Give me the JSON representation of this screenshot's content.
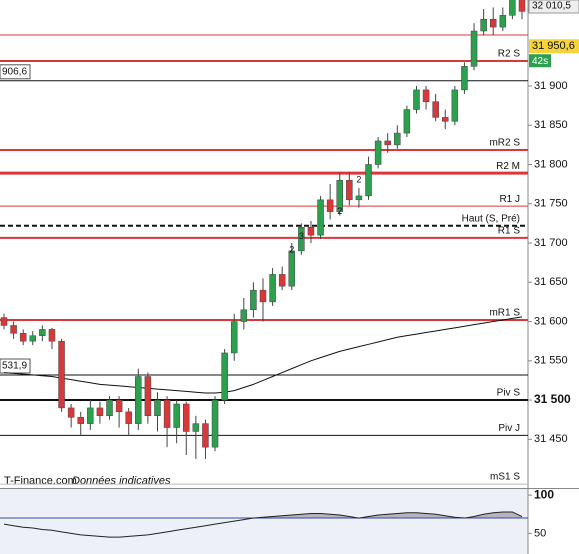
{
  "chart_data": {
    "type": "candlestick",
    "ylim": [
      31388,
      32009.5
    ],
    "yticks": [
      {
        "value": 31900,
        "label": "31 900"
      },
      {
        "value": 31850,
        "label": "31 850"
      },
      {
        "value": 31800,
        "label": "31 800"
      },
      {
        "value": 31750,
        "label": "31 750"
      },
      {
        "value": 31700,
        "label": "31 700"
      },
      {
        "value": 31650,
        "label": "31 650"
      },
      {
        "value": 31600,
        "label": "31 600"
      },
      {
        "value": 31550,
        "label": "31 550"
      },
      {
        "value": 31500,
        "label": "31 500"
      },
      {
        "value": 31450,
        "label": "31 450"
      }
    ],
    "up_color": "#2e9e4f",
    "down_color": "#d9383a",
    "open": [
      31605,
      31595,
      31585,
      31575,
      31582,
      31590,
      31575,
      31490,
      31478,
      31470,
      31490,
      31480,
      31500,
      31485,
      31470,
      31530,
      31480,
      31500,
      31465,
      31495,
      31460,
      31470,
      31440,
      31500,
      31560,
      31600,
      31615,
      31640,
      31625,
      31660,
      31645,
      31690,
      31720,
      31710,
      31755,
      31740,
      31780,
      31755,
      31760,
      31800,
      31830,
      31825,
      31840,
      31870,
      31895,
      31880,
      31860,
      31855,
      31895,
      31925,
      31970,
      31985,
      31975,
      31990,
      32010
    ],
    "high": [
      31610,
      31600,
      31590,
      31588,
      31595,
      31592,
      31578,
      31495,
      31485,
      31500,
      31498,
      31505,
      31505,
      31490,
      31540,
      31535,
      31510,
      31505,
      31500,
      31498,
      31480,
      31475,
      31505,
      31565,
      31610,
      31630,
      31650,
      31655,
      31668,
      31670,
      31700,
      31725,
      31728,
      31760,
      31775,
      31790,
      31790,
      31770,
      31810,
      31835,
      31840,
      31850,
      31875,
      31900,
      31900,
      31890,
      31870,
      31900,
      31930,
      31980,
      31998,
      32000,
      32000,
      32012,
      32012
    ],
    "low": [
      31590,
      31578,
      31570,
      31570,
      31575,
      31565,
      31485,
      31465,
      31455,
      31462,
      31470,
      31475,
      31465,
      31455,
      31462,
      31470,
      31460,
      31440,
      31445,
      31430,
      31425,
      31425,
      31435,
      31495,
      31550,
      31590,
      31605,
      31600,
      31620,
      31640,
      31640,
      31685,
      31700,
      31705,
      31730,
      31735,
      31748,
      31745,
      31755,
      31795,
      31815,
      31820,
      31835,
      31865,
      31870,
      31855,
      31845,
      31850,
      31890,
      31920,
      31965,
      31965,
      31970,
      31985,
      31985
    ],
    "close": [
      31595,
      31585,
      31575,
      31582,
      31590,
      31575,
      31490,
      31478,
      31470,
      31490,
      31480,
      31500,
      31485,
      31470,
      31530,
      31480,
      31500,
      31465,
      31495,
      31460,
      31470,
      31440,
      31500,
      31560,
      31600,
      31615,
      31640,
      31625,
      31660,
      31645,
      31690,
      31720,
      31710,
      31755,
      31740,
      31780,
      31755,
      31760,
      31800,
      31830,
      31825,
      31840,
      31870,
      31895,
      31880,
      31860,
      31855,
      31895,
      31925,
      31970,
      31985,
      31975,
      31990,
      32010,
      31995
    ],
    "moving_average": {
      "color": "#111111",
      "values": [
        31535,
        31534,
        31533,
        31532,
        31531,
        31530,
        31528,
        31526,
        31524,
        31522,
        31520,
        31519,
        31518,
        31517,
        31516,
        31515,
        31514,
        31513,
        31512,
        31511,
        31510,
        31509,
        31509,
        31510,
        31512,
        31516,
        31520,
        31525,
        31530,
        31535,
        31540,
        31545,
        31550,
        31554,
        31558,
        31562,
        31565,
        31568,
        31571,
        31574,
        31577,
        31580,
        31582,
        31584,
        31586,
        31588,
        31590,
        31592,
        31594,
        31596,
        31598,
        31600,
        31602,
        31604,
        31606
      ]
    },
    "levels": [
      {
        "value": 31965,
        "color": "#d9383a",
        "width": 1
      },
      {
        "value": 31931.8,
        "label": "R2 S",
        "color": "#d9383a",
        "width": 2
      },
      {
        "value": 31906.6,
        "side_label": "906,6",
        "color": "#111111",
        "width": 1
      },
      {
        "value": 31818.5,
        "label": "mR2 S",
        "color": "#d9383a",
        "width": 2
      },
      {
        "value": 31789,
        "label": "R2 M",
        "color": "#d9383a",
        "width": 3
      },
      {
        "value": 31747,
        "label": "R1 J",
        "color": "#d9383a",
        "width": 1
      },
      {
        "value": 31722,
        "label": "Haut (S, Pré)",
        "color": "#111111",
        "width": 2,
        "dashed": true
      },
      {
        "value": 31706.5,
        "label": "R1 S",
        "color": "#d9383a",
        "width": 2
      },
      {
        "value": 31602,
        "label": "mR1 S",
        "color": "#d9383a",
        "width": 2
      },
      {
        "value": 31531.9,
        "side_label": "531,9",
        "color": "#111111",
        "width": 1
      },
      {
        "value": 31500,
        "label": "Piv S",
        "color": "#111111",
        "width": 2
      },
      {
        "value": 31455,
        "label": "Piv J",
        "color": "#111111",
        "width": 1
      },
      {
        "value": 31393,
        "label": "mS1 S",
        "color": "#bbbbbb",
        "width": 1
      }
    ],
    "annotations": [
      {
        "text": "2",
        "candle": 30,
        "price": 31691
      },
      {
        "text": "3",
        "candle": 31,
        "price": 31708
      },
      {
        "text": "2",
        "candle": 35,
        "price": 31740
      },
      {
        "text": "2",
        "candle": 37,
        "price": 31780
      }
    ],
    "top_price": "32 010,5",
    "last_price": {
      "value": 31950.6,
      "label": "31 950,6"
    },
    "timer": "42s",
    "watermark": "T-Finance.com",
    "watermark_note": "Données indicatives",
    "oscillator": {
      "type": "line",
      "color": "#222222",
      "fill": "#b9b3bf",
      "ylim": [
        23,
        108
      ],
      "yticks": [
        100,
        50
      ],
      "reference": 70,
      "values": [
        62,
        60,
        58,
        57,
        55,
        54,
        52,
        50,
        48,
        47,
        46,
        45,
        45,
        46,
        47,
        48,
        50,
        52,
        54,
        56,
        58,
        60,
        62,
        64,
        66,
        68,
        70,
        71,
        72,
        73,
        74,
        75,
        76,
        76,
        75,
        74,
        72,
        70,
        72,
        74,
        75,
        76,
        77,
        77,
        76,
        75,
        73,
        71,
        70,
        72,
        75,
        77,
        78,
        78,
        72
      ]
    }
  }
}
